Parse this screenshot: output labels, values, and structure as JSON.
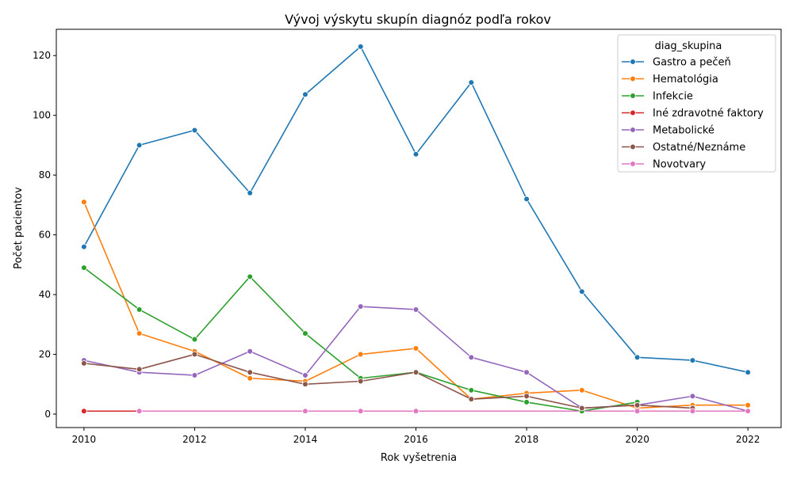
{
  "chart_data": {
    "type": "line",
    "title": "Vývoj výskytu skupín diagnóz podľa rokov",
    "xlabel": "Rok vyšetrenia",
    "ylabel": "Počet pacientov",
    "xlim": [
      2009.5,
      2022.6
    ],
    "ylim": [
      -4.5,
      128.8
    ],
    "xticks": [
      2010,
      2012,
      2014,
      2016,
      2018,
      2020,
      2022
    ],
    "yticks": [
      0,
      20,
      40,
      60,
      80,
      100,
      120
    ],
    "grid": false,
    "legend": {
      "title": "diag_skupina",
      "placement": "top-right"
    },
    "series": [
      {
        "name": "Gastro a pečeň",
        "color": "#1f77b4",
        "x": [
          2010,
          2011,
          2012,
          2013,
          2014,
          2015,
          2016,
          2017,
          2018,
          2019,
          2020,
          2021,
          2022
        ],
        "y": [
          56,
          90,
          95,
          74,
          107,
          123,
          87,
          111,
          72,
          41,
          19,
          18,
          14
        ]
      },
      {
        "name": "Hematológia",
        "color": "#ff7f0e",
        "x": [
          2010,
          2011,
          2012,
          2013,
          2014,
          2015,
          2016,
          2017,
          2018,
          2019,
          2020,
          2021,
          2022
        ],
        "y": [
          71,
          27,
          21,
          12,
          11,
          20,
          22,
          5,
          7,
          8,
          2,
          3,
          3
        ]
      },
      {
        "name": "Infekcie",
        "color": "#2ca02c",
        "x": [
          2010,
          2011,
          2012,
          2013,
          2014,
          2015,
          2016,
          2017,
          2018,
          2019,
          2020
        ],
        "y": [
          49,
          35,
          25,
          46,
          27,
          12,
          14,
          8,
          4,
          1,
          4
        ]
      },
      {
        "name": "Iné zdravotné faktory",
        "color": "#d62728",
        "x": [
          2010,
          2011
        ],
        "y": [
          1,
          1
        ]
      },
      {
        "name": "Metabolické",
        "color": "#9467bd",
        "x": [
          2010,
          2011,
          2012,
          2013,
          2014,
          2015,
          2016,
          2017,
          2018,
          2019,
          2020,
          2021,
          2022
        ],
        "y": [
          18,
          14,
          13,
          21,
          13,
          36,
          35,
          19,
          14,
          2,
          3,
          6,
          1
        ]
      },
      {
        "name": "Ostatné/Neznáme",
        "color": "#8c564b",
        "x": [
          2010,
          2011,
          2012,
          2013,
          2014,
          2015,
          2016,
          2017,
          2018,
          2019,
          2020,
          2021
        ],
        "y": [
          17,
          15,
          20,
          14,
          10,
          11,
          14,
          5,
          6,
          2,
          3,
          2
        ]
      },
      {
        "name": "Novotvary",
        "color": "#e377c2",
        "x": [
          2011,
          2014,
          2015,
          2016,
          2020,
          2021,
          2022
        ],
        "y": [
          1,
          1,
          1,
          1,
          1,
          1,
          1
        ]
      }
    ]
  }
}
